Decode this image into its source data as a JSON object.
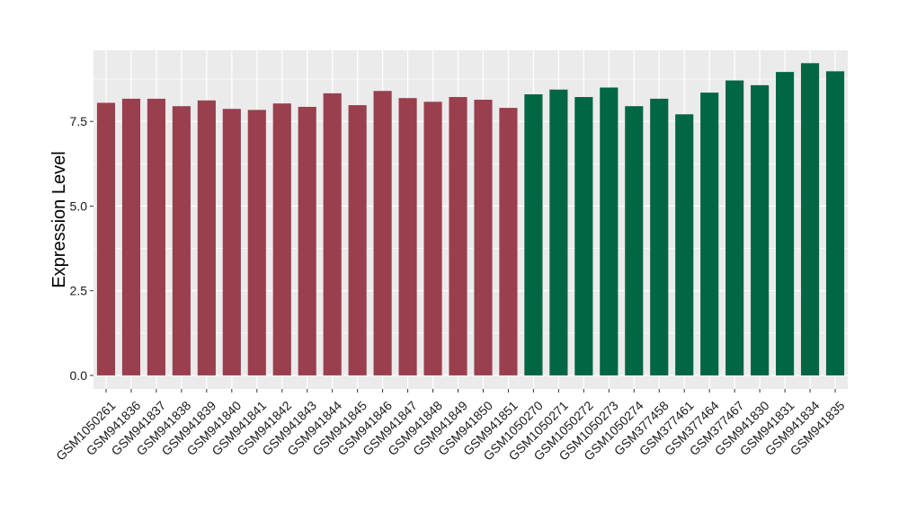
{
  "chart_data": {
    "type": "bar",
    "ylabel": "Expression Level",
    "xlabel": "",
    "title": "",
    "ylim": [
      -0.4,
      9.6
    ],
    "yticks": [
      0.0,
      2.5,
      5.0,
      7.5
    ],
    "ytick_labels": [
      "0.0",
      "2.5",
      "5.0",
      "7.5"
    ],
    "grid": true,
    "legend": "none",
    "panel_color": "#EBEBEB",
    "categories": [
      "GSM1050261",
      "GSM941836",
      "GSM941837",
      "GSM941838",
      "GSM941839",
      "GSM941840",
      "GSM941841",
      "GSM941842",
      "GSM941843",
      "GSM941844",
      "GSM941845",
      "GSM941846",
      "GSM941847",
      "GSM941848",
      "GSM941849",
      "GSM941850",
      "GSM941851",
      "GSM1050270",
      "GSM1050271",
      "GSM1050272",
      "GSM1050273",
      "GSM1050274",
      "GSM377458",
      "GSM377461",
      "GSM377464",
      "GSM377467",
      "GSM941830",
      "GSM941831",
      "GSM941834",
      "GSM941835"
    ],
    "values": [
      8.05,
      8.17,
      8.17,
      7.95,
      8.12,
      7.87,
      7.84,
      8.03,
      7.93,
      8.33,
      7.98,
      8.4,
      8.19,
      8.08,
      8.22,
      8.14,
      7.9,
      8.3,
      8.44,
      8.22,
      8.5,
      7.95,
      8.17,
      7.71,
      8.35,
      8.71,
      8.57,
      8.96,
      9.22,
      8.98
    ],
    "bar_colors": [
      "#9A3F4E",
      "#9A3F4E",
      "#9A3F4E",
      "#9A3F4E",
      "#9A3F4E",
      "#9A3F4E",
      "#9A3F4E",
      "#9A3F4E",
      "#9A3F4E",
      "#9A3F4E",
      "#9A3F4E",
      "#9A3F4E",
      "#9A3F4E",
      "#9A3F4E",
      "#9A3F4E",
      "#9A3F4E",
      "#9A3F4E",
      "#006644",
      "#006644",
      "#006644",
      "#006644",
      "#006644",
      "#006644",
      "#006644",
      "#006644",
      "#006644",
      "#006644",
      "#006644",
      "#006644",
      "#006644"
    ]
  }
}
